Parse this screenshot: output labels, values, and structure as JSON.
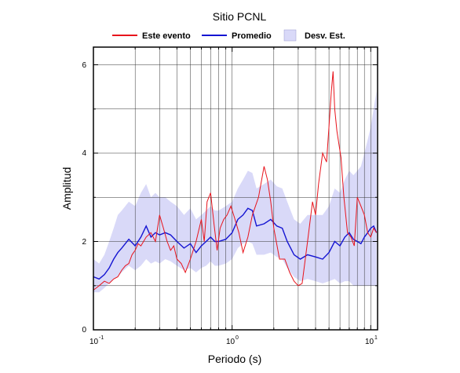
{
  "chart_data": {
    "type": "line",
    "title": "Sitio PCNL",
    "xlabel": "Periodo (s)",
    "ylabel": "Amplitud",
    "x_scale": "log",
    "xlim": [
      0.1,
      11.2
    ],
    "ylim": [
      0,
      6.4
    ],
    "grid": true,
    "legend_position": "top",
    "y_ticks": [
      "0",
      "2",
      "4",
      "6"
    ],
    "x_ticks": [
      {
        "base": "10",
        "exp": "-1",
        "value": 0.1
      },
      {
        "base": "10",
        "exp": "0",
        "value": 1
      },
      {
        "base": "10",
        "exp": "1",
        "value": 10
      }
    ],
    "colors": {
      "event": "#e8141c",
      "mean": "#1414d2",
      "band_fill": "#d9d9f8",
      "grid": "#333333"
    },
    "series": [
      {
        "name": "Este evento",
        "x": [
          0.1,
          0.105,
          0.11,
          0.12,
          0.13,
          0.14,
          0.15,
          0.16,
          0.17,
          0.18,
          0.19,
          0.2,
          0.21,
          0.22,
          0.24,
          0.26,
          0.28,
          0.3,
          0.32,
          0.34,
          0.36,
          0.38,
          0.4,
          0.43,
          0.46,
          0.5,
          0.55,
          0.6,
          0.63,
          0.66,
          0.7,
          0.74,
          0.78,
          0.82,
          0.87,
          0.92,
          0.98,
          1.05,
          1.12,
          1.2,
          1.3,
          1.4,
          1.55,
          1.7,
          1.8,
          1.9,
          2.0,
          2.2,
          2.4,
          2.6,
          2.8,
          3.0,
          3.2,
          3.5,
          3.8,
          4.0,
          4.2,
          4.5,
          4.8,
          5.0,
          5.2,
          5.35,
          5.5,
          5.7,
          5.9,
          6.1,
          6.4,
          6.8,
          7.2,
          7.6,
          8.0,
          8.5,
          9.0,
          9.5,
          10.0,
          10.5,
          11.0
        ],
        "values": [
          0.9,
          0.95,
          1.0,
          1.1,
          1.05,
          1.15,
          1.2,
          1.35,
          1.45,
          1.5,
          1.7,
          1.8,
          1.95,
          1.9,
          2.1,
          2.2,
          2.0,
          2.6,
          2.3,
          2.0,
          1.8,
          1.9,
          1.6,
          1.5,
          1.3,
          1.6,
          2.0,
          2.5,
          2.0,
          2.9,
          3.1,
          2.4,
          1.8,
          2.3,
          2.5,
          2.6,
          2.8,
          2.5,
          2.2,
          1.75,
          2.1,
          2.6,
          3.0,
          3.7,
          3.4,
          2.9,
          2.3,
          1.6,
          1.6,
          1.3,
          1.1,
          1.0,
          1.05,
          2.0,
          2.9,
          2.6,
          3.3,
          4.0,
          3.8,
          4.6,
          5.4,
          5.85,
          5.0,
          4.5,
          4.2,
          3.9,
          3.0,
          2.2,
          2.1,
          1.9,
          3.0,
          2.8,
          2.6,
          2.2,
          2.1,
          2.3,
          2.2
        ]
      },
      {
        "name": "Promedio",
        "x": [
          0.1,
          0.11,
          0.12,
          0.13,
          0.14,
          0.15,
          0.16,
          0.18,
          0.2,
          0.22,
          0.24,
          0.26,
          0.28,
          0.3,
          0.33,
          0.36,
          0.4,
          0.45,
          0.5,
          0.55,
          0.6,
          0.65,
          0.7,
          0.75,
          0.8,
          0.9,
          1.0,
          1.1,
          1.2,
          1.3,
          1.4,
          1.5,
          1.7,
          1.9,
          2.1,
          2.3,
          2.5,
          2.8,
          3.1,
          3.5,
          4.0,
          4.5,
          5.0,
          5.5,
          6.0,
          6.5,
          7.0,
          7.5,
          8.0,
          8.5,
          9.0,
          9.5,
          10.0,
          10.5,
          11.0
        ],
        "values": [
          1.2,
          1.15,
          1.25,
          1.4,
          1.6,
          1.75,
          1.85,
          2.05,
          1.9,
          2.1,
          2.35,
          2.1,
          2.2,
          2.15,
          2.2,
          2.15,
          2.0,
          1.85,
          1.95,
          1.75,
          1.9,
          2.0,
          2.1,
          2.0,
          2.0,
          2.05,
          2.2,
          2.5,
          2.6,
          2.75,
          2.7,
          2.35,
          2.4,
          2.5,
          2.35,
          2.3,
          2.0,
          1.7,
          1.6,
          1.7,
          1.65,
          1.6,
          1.75,
          2.0,
          1.9,
          2.1,
          2.2,
          2.05,
          2.0,
          1.95,
          2.1,
          2.2,
          2.3,
          2.35,
          2.2
        ]
      },
      {
        "name": "Desv. Est.",
        "x": [
          0.1,
          0.11,
          0.12,
          0.13,
          0.14,
          0.15,
          0.16,
          0.18,
          0.2,
          0.22,
          0.24,
          0.26,
          0.28,
          0.3,
          0.33,
          0.36,
          0.4,
          0.45,
          0.5,
          0.55,
          0.6,
          0.65,
          0.7,
          0.75,
          0.8,
          0.9,
          1.0,
          1.1,
          1.2,
          1.3,
          1.4,
          1.5,
          1.7,
          1.9,
          2.1,
          2.3,
          2.5,
          2.8,
          3.1,
          3.5,
          4.0,
          4.5,
          5.0,
          5.5,
          6.0,
          6.5,
          7.0,
          7.5,
          8.0,
          8.5,
          9.0,
          9.5,
          10.0,
          10.5,
          11.0
        ],
        "upper": [
          1.6,
          1.5,
          1.7,
          2.0,
          2.3,
          2.6,
          2.7,
          2.9,
          2.8,
          3.1,
          3.3,
          3.0,
          3.1,
          3.0,
          3.0,
          2.9,
          2.8,
          2.6,
          2.75,
          2.5,
          2.6,
          2.7,
          2.8,
          2.7,
          2.7,
          2.8,
          2.9,
          3.2,
          3.4,
          3.6,
          3.55,
          3.2,
          3.3,
          3.4,
          3.25,
          3.2,
          2.9,
          2.5,
          2.4,
          2.6,
          2.6,
          2.6,
          2.8,
          3.2,
          3.1,
          3.4,
          3.6,
          3.5,
          3.6,
          3.7,
          4.0,
          4.3,
          4.6,
          5.0,
          5.4
        ],
        "lower": [
          0.85,
          0.85,
          0.95,
          1.05,
          1.15,
          1.2,
          1.3,
          1.45,
          1.35,
          1.45,
          1.6,
          1.5,
          1.55,
          1.5,
          1.6,
          1.55,
          1.45,
          1.35,
          1.4,
          1.3,
          1.4,
          1.45,
          1.55,
          1.45,
          1.45,
          1.5,
          1.6,
          1.85,
          1.95,
          2.0,
          1.95,
          1.7,
          1.7,
          1.75,
          1.65,
          1.6,
          1.4,
          1.2,
          1.1,
          1.15,
          1.1,
          1.05,
          1.1,
          1.15,
          1.05,
          1.1,
          1.1,
          1.0,
          1.0,
          1.0,
          1.0,
          1.0,
          1.0,
          1.0,
          1.0
        ]
      }
    ]
  }
}
